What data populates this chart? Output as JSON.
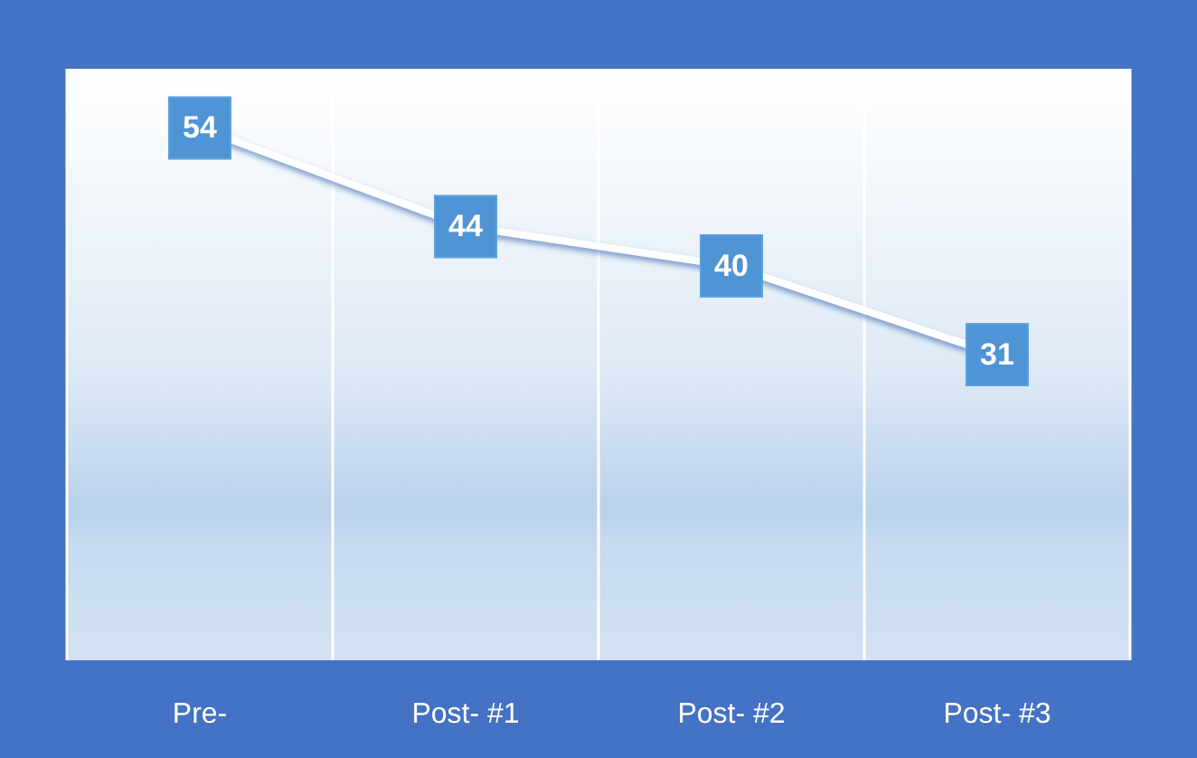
{
  "chart_data": {
    "type": "line",
    "categories": [
      "Pre-",
      "Post- #1",
      "Post- #2",
      "Post- #3"
    ],
    "values": [
      54,
      44,
      40,
      31
    ],
    "color": "#ffffff",
    "ylim": [
      0,
      60
    ],
    "tick_labels": "x",
    "grid": "x",
    "data_labels": true,
    "marker": "square",
    "line_style": "solid"
  }
}
